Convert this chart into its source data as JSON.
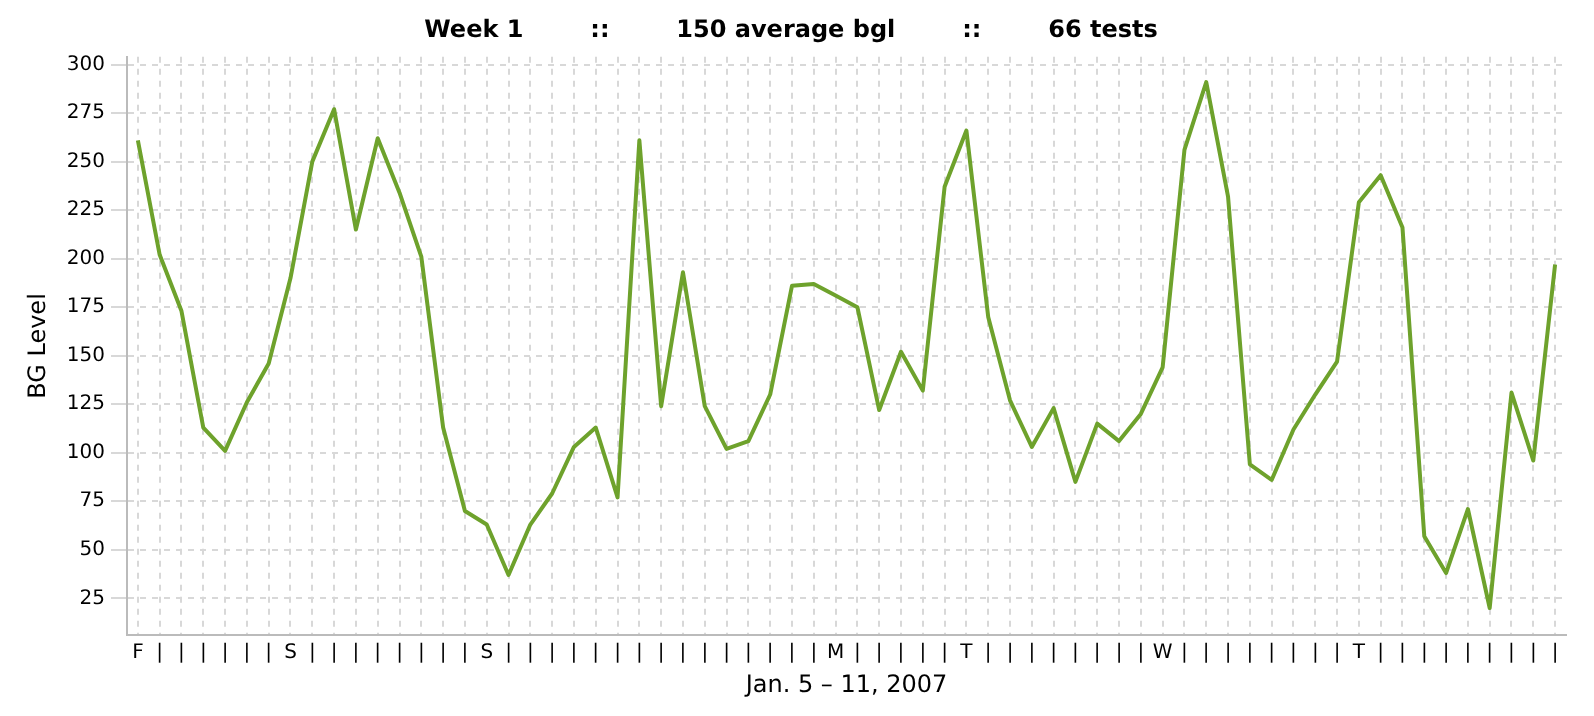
{
  "chart_data": {
    "type": "line",
    "title": "Week 1        ::        150 average bgl        ::        66 tests",
    "xlabel": "Jan. 5 – 11, 2007",
    "ylabel": "BG Level",
    "categories": [
      "F",
      "|",
      "|",
      "|",
      "|",
      "|",
      "|",
      "S",
      "|",
      "|",
      "|",
      "|",
      "|",
      "|",
      "|",
      "|",
      "S",
      "|",
      "|",
      "|",
      "|",
      "|",
      "|",
      "|",
      "|",
      "|",
      "|",
      "|",
      "|",
      "|",
      "|",
      "|",
      "M",
      "|",
      "|",
      "|",
      "|",
      "|",
      "T",
      "|",
      "|",
      "|",
      "|",
      "|",
      "|",
      "|",
      "|",
      "W",
      "|",
      "|",
      "|",
      "|",
      "|",
      "|",
      "|",
      "|",
      "T",
      "|",
      "|",
      "|",
      "|",
      "|",
      "|",
      "|",
      "|",
      "|"
    ],
    "series": [
      {
        "color": "#6ea22c",
        "values": [
          261,
          202,
          173,
          113,
          101,
          126,
          146,
          190,
          250,
          277,
          215,
          262,
          234,
          201,
          113,
          70,
          63,
          37,
          63,
          79,
          103,
          113,
          77,
          261,
          124,
          193,
          124,
          102,
          106,
          130,
          186,
          187,
          181,
          175,
          122,
          152,
          132,
          237,
          266,
          170,
          127,
          103,
          123,
          85,
          115,
          106,
          120,
          144,
          256,
          291,
          232,
          94,
          86,
          112,
          130,
          147,
          229,
          243,
          216,
          57,
          38,
          71,
          20,
          131,
          96,
          197
        ]
      }
    ],
    "ylim": [
      6,
      304
    ],
    "yticks": [
      25,
      50,
      75,
      100,
      125,
      150,
      175,
      200,
      225,
      250,
      275,
      300
    ],
    "grid": true,
    "legend": false,
    "marker": "none",
    "line_style": "solid"
  }
}
